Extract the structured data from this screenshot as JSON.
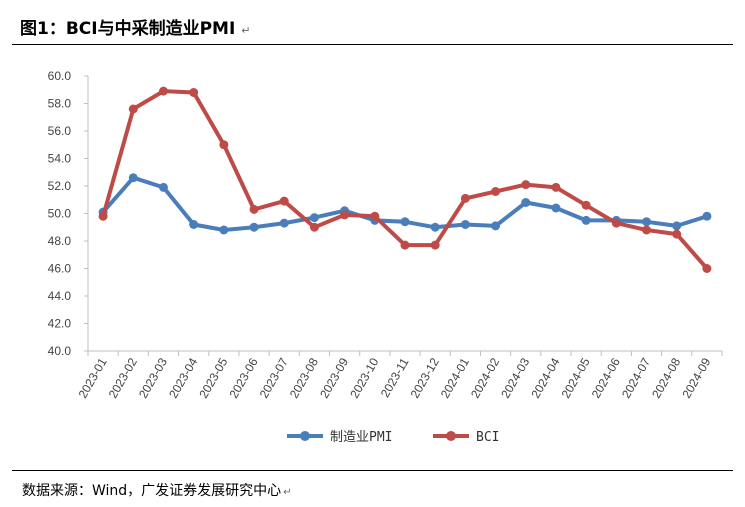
{
  "figure": {
    "title": "图1：BCI与中采制造业PMI",
    "return_mark": "↵",
    "source": "数据来源：Wind，广发证券发展研究中心"
  },
  "colors": {
    "pmi": "#4a7ebb",
    "bci": "#be4b48",
    "axis": "#bfbfbf",
    "text": "#444444"
  },
  "chart_data": {
    "type": "line",
    "title": "",
    "xlabel": "",
    "ylabel": "",
    "ylim": [
      40.0,
      60.0
    ],
    "ytick_step": 2.0,
    "grid": false,
    "legend_position": "bottom",
    "categories": [
      "2023-01",
      "2023-02",
      "2023-03",
      "2023-04",
      "2023-05",
      "2023-06",
      "2023-07",
      "2023-08",
      "2023-09",
      "2023-10",
      "2023-11",
      "2023-12",
      "2024-01",
      "2024-02",
      "2024-03",
      "2024-04",
      "2024-05",
      "2024-06",
      "2024-07",
      "2024-08",
      "2024-09"
    ],
    "series": [
      {
        "name": "制造业PMI",
        "color_key": "pmi",
        "values": [
          50.1,
          52.6,
          51.9,
          49.2,
          48.8,
          49.0,
          49.3,
          49.7,
          50.2,
          49.5,
          49.4,
          49.0,
          49.2,
          49.1,
          50.8,
          50.4,
          49.5,
          49.5,
          49.4,
          49.1,
          49.8
        ]
      },
      {
        "name": "BCI",
        "color_key": "bci",
        "values": [
          49.8,
          57.6,
          58.9,
          58.8,
          55.0,
          50.3,
          50.9,
          49.0,
          49.9,
          49.8,
          47.7,
          47.7,
          51.1,
          51.6,
          52.1,
          51.9,
          50.6,
          49.3,
          48.8,
          48.5,
          46.0
        ]
      }
    ]
  }
}
